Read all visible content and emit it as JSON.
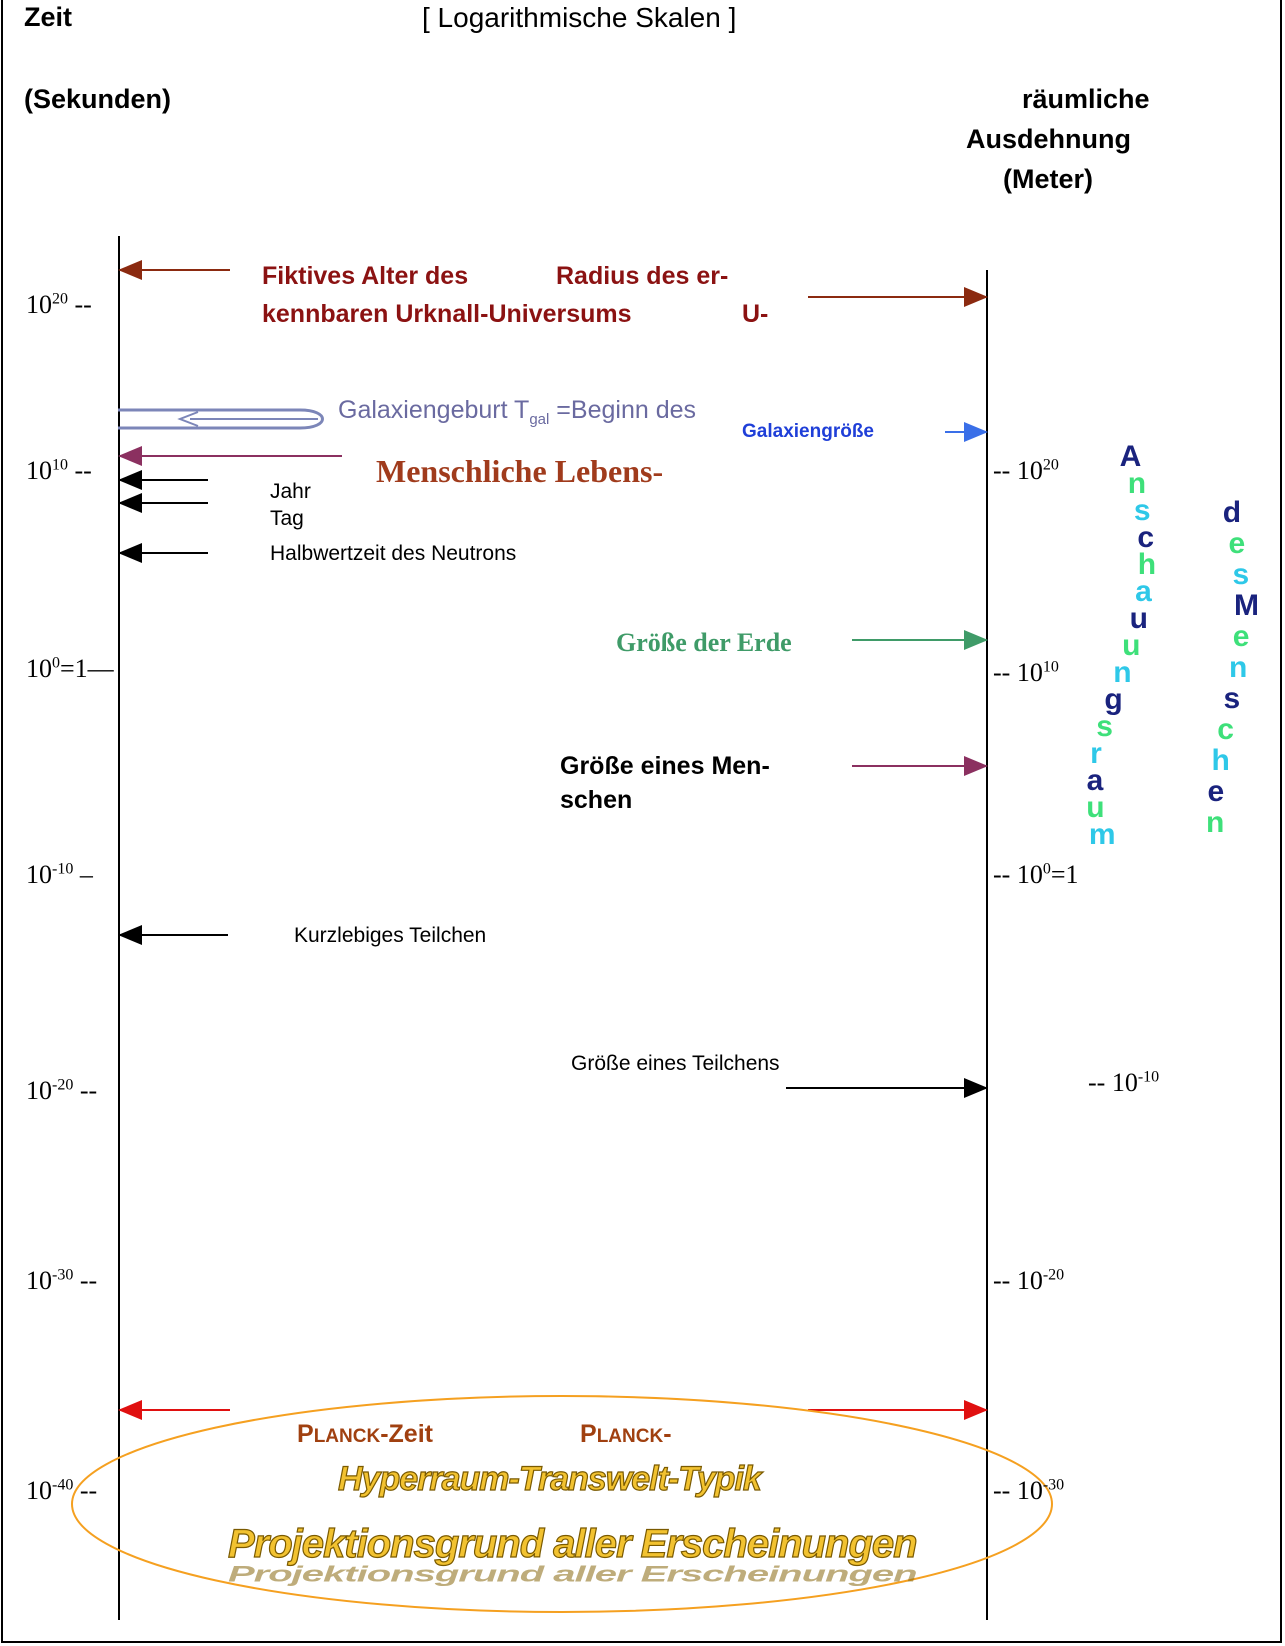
{
  "header": {
    "left_title": "Zeit",
    "center_title": "[ Logarithmische Skalen ]",
    "left_unit": "(Sekunden)",
    "right_title_line1": "räumliche",
    "right_title_line2": "Ausdehnung",
    "right_unit": "(Meter)"
  },
  "time_axis": {
    "ticks": [
      {
        "base": "10",
        "exp": "20",
        "suffix": " --"
      },
      {
        "base": "10",
        "exp": "10",
        "suffix": " --"
      },
      {
        "base": "10",
        "exp": "0",
        "suffix": "=1—"
      },
      {
        "base": "10",
        "exp": "-10",
        "suffix": " –"
      },
      {
        "base": "10",
        "exp": "-20",
        "suffix": " --"
      },
      {
        "base": "10",
        "exp": "-30",
        "suffix": " --"
      },
      {
        "base": "10",
        "exp": "-40",
        "suffix": " --"
      }
    ]
  },
  "space_axis": {
    "ticks": [
      {
        "prefix": "-- ",
        "base": "10",
        "exp": "20",
        "suffix": ""
      },
      {
        "prefix": "-- ",
        "base": "10",
        "exp": "10",
        "suffix": ""
      },
      {
        "prefix": "-- ",
        "base": "10",
        "exp": "0",
        "suffix": "=1"
      },
      {
        "prefix": "-- ",
        "base": "10",
        "exp": "-10",
        "suffix": ""
      },
      {
        "prefix": "-- ",
        "base": "10",
        "exp": "-20",
        "suffix": ""
      },
      {
        "prefix": "-- ",
        "base": "10",
        "exp": "-30",
        "suffix": ""
      }
    ]
  },
  "labels": {
    "universe_left_1": "Fiktives Alter des",
    "universe_left_2": "kennbaren Urknall-Universums",
    "universe_right_1": "Radius des er-",
    "universe_right_2": "U-",
    "galaxy_birth_pre": "Galaxiengeburt T",
    "galaxy_birth_sub": "gal",
    "galaxy_birth_post": " =Beginn des",
    "galaxy_size": "Galaxiengröße",
    "human_life": "Menschliche Lebens-",
    "year": "Jahr",
    "day": "Tag",
    "neutron": "Halbwertzeit des Neutrons",
    "earth_size": "Größe der Erde",
    "human_size_1": "Größe eines Men-",
    "human_size_2": "schen",
    "short_particle": "Kurzlebiges Teilchen",
    "particle_size": "Größe eines Teilchens",
    "planck_time_cap": "P",
    "planck_time_small": "LANCK",
    "planck_time_rest": "-Zeit",
    "planck_len_cap": "P",
    "planck_len_small": "LANCK",
    "planck_len_rest": "-",
    "hyperraum": "Hyperraum-Transwelt-Typik",
    "projektionsgrund": "Projektionsgrund aller Erscheinungen"
  },
  "wordart": {
    "anschauungsraum": "Anschauungsraum",
    "des_menschen": "des Menschen"
  },
  "colors": {
    "universe_arrow": "#8b2a10",
    "galaxy_arrow": "#3a6fe8",
    "human_life_arrow": "#8b3060",
    "earth_arrow": "#3f9b68",
    "human_size_arrow": "#8b3060",
    "planck_arrow": "#e01010",
    "ellipse": "#f5a020"
  }
}
